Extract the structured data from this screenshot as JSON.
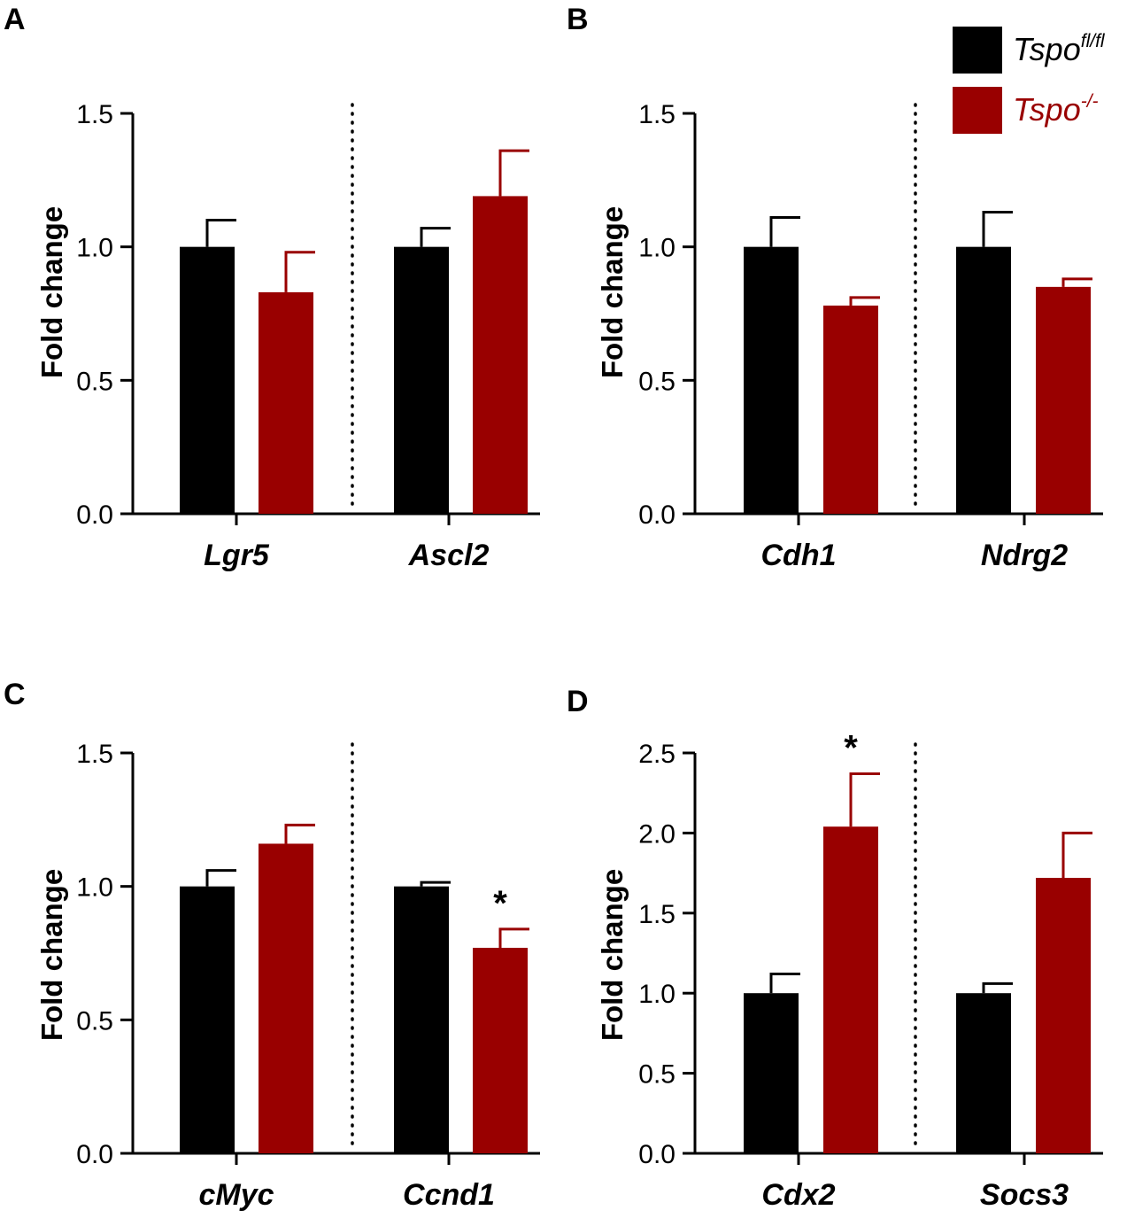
{
  "colors": {
    "control": "#000000",
    "knockout": "#990000"
  },
  "legend": {
    "items": [
      {
        "base": "Tspo",
        "sup": "fl/fl",
        "color": "#000000"
      },
      {
        "base": "Tspo",
        "sup": "-/-",
        "color": "#990000"
      }
    ]
  },
  "chart_data": [
    {
      "type": "bar",
      "panel": "A",
      "ylabel": "Fold change",
      "ylim": [
        0,
        1.5
      ],
      "yticks": [
        "0.0",
        "0.5",
        "1.0",
        "1.5"
      ],
      "categories": [
        "Lgr5",
        "Ascl2"
      ],
      "series": [
        {
          "name": "Tspo fl/fl",
          "values": [
            1.0,
            1.0
          ],
          "errors": [
            0.1,
            0.07
          ]
        },
        {
          "name": "Tspo -/-",
          "values": [
            0.83,
            1.19
          ],
          "errors": [
            0.15,
            0.17
          ]
        }
      ],
      "significance": []
    },
    {
      "type": "bar",
      "panel": "B",
      "ylabel": "Fold change",
      "ylim": [
        0,
        1.5
      ],
      "yticks": [
        "0.0",
        "0.5",
        "1.0",
        "1.5"
      ],
      "categories": [
        "Cdh1",
        "Ndrg2"
      ],
      "series": [
        {
          "name": "Tspo fl/fl",
          "values": [
            1.0,
            1.0
          ],
          "errors": [
            0.11,
            0.13
          ]
        },
        {
          "name": "Tspo -/-",
          "values": [
            0.78,
            0.85
          ],
          "errors": [
            0.03,
            0.03
          ]
        }
      ],
      "significance": []
    },
    {
      "type": "bar",
      "panel": "C",
      "ylabel": "Fold change",
      "ylim": [
        0,
        1.5
      ],
      "yticks": [
        "0.0",
        "0.5",
        "1.0",
        "1.5"
      ],
      "categories": [
        "cMyc",
        "Ccnd1"
      ],
      "series": [
        {
          "name": "Tspo fl/fl",
          "values": [
            1.0,
            1.0
          ],
          "errors": [
            0.06,
            0.015
          ]
        },
        {
          "name": "Tspo -/-",
          "values": [
            1.16,
            0.77
          ],
          "errors": [
            0.07,
            0.07
          ]
        }
      ],
      "significance": [
        {
          "category": 1,
          "series": 1,
          "mark": "*"
        }
      ]
    },
    {
      "type": "bar",
      "panel": "D",
      "ylabel": "Fold change",
      "ylim": [
        0,
        2.5
      ],
      "yticks": [
        "0.0",
        "0.5",
        "1.0",
        "1.5",
        "2.0",
        "2.5"
      ],
      "categories": [
        "Cdx2",
        "Socs3"
      ],
      "series": [
        {
          "name": "Tspo fl/fl",
          "values": [
            1.0,
            1.0
          ],
          "errors": [
            0.12,
            0.06
          ]
        },
        {
          "name": "Tspo -/-",
          "values": [
            2.04,
            1.72
          ],
          "errors": [
            0.33,
            0.28
          ]
        }
      ],
      "significance": [
        {
          "category": 0,
          "series": 1,
          "mark": "*"
        }
      ]
    }
  ]
}
